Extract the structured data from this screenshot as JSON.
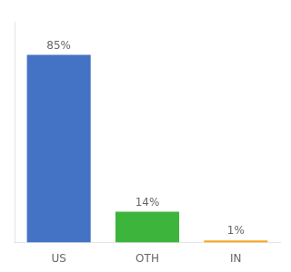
{
  "chart_data": {
    "type": "bar",
    "categories": [
      "US",
      "OTH",
      "IN"
    ],
    "values": [
      85,
      14,
      1
    ],
    "value_labels": [
      "85%",
      "14%",
      "1%"
    ],
    "colors": [
      "#4472c4",
      "#3db53d",
      "#f5a623"
    ],
    "data_labels": true,
    "ylim": [
      0,
      100
    ],
    "grid": false,
    "tick_labels": "x"
  }
}
